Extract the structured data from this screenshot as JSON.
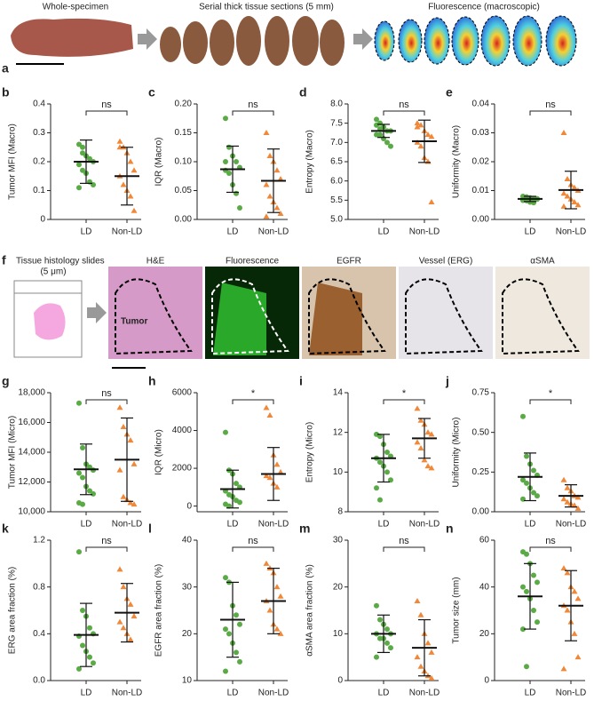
{
  "panel_a": {
    "letter": "a",
    "labels": [
      "Whole-specimen",
      "Serial thick tissue sections (5 mm)",
      "Fluorescence (macroscopic)"
    ]
  },
  "panel_f": {
    "letter": "f",
    "slide_label": "Tissue histology slides",
    "slide_sub": "(5 μm)",
    "labels": [
      "H&E",
      "Fluorescence",
      "EGFR",
      "Vessel (ERG)",
      "αSMA"
    ],
    "tumor": "Tumor"
  },
  "chart_data": [
    {
      "type": "dot",
      "panel": "b",
      "ylabel": "Tumor MFI (Macro)",
      "categories": [
        "LD",
        "Non-LD"
      ],
      "significance": "ns",
      "ylim": [
        0,
        0.4
      ],
      "yticks": [
        0,
        0.1,
        0.2,
        0.3,
        0.4
      ],
      "groups": [
        {
          "color": "#5aaa46",
          "marker": "circle",
          "values": [
            0.26,
            0.23,
            0.22,
            0.21,
            0.2,
            0.19,
            0.17,
            0.16,
            0.13,
            0.12,
            0.11,
            0.25
          ],
          "mean": 0.2,
          "sd": 0.075
        },
        {
          "color": "#f0883a",
          "marker": "triangle",
          "values": [
            0.27,
            0.25,
            0.23,
            0.2,
            0.17,
            0.15,
            0.12,
            0.1,
            0.08,
            0.03,
            0.25
          ],
          "mean": 0.15,
          "sd": 0.1
        }
      ]
    },
    {
      "type": "dot",
      "panel": "c",
      "ylabel": "IQR (Macro)",
      "categories": [
        "LD",
        "Non-LD"
      ],
      "significance": "ns",
      "ylim": [
        0,
        0.2
      ],
      "yticks": [
        {
          "value": 0,
          "label": "0.00"
        },
        {
          "value": 0.05,
          "label": "0.05"
        },
        {
          "value": 0.1,
          "label": "0.10"
        },
        {
          "value": 0.15,
          "label": "0.15"
        },
        {
          "value": 0.2,
          "label": "0.20"
        }
      ],
      "groups": [
        {
          "color": "#5aaa46",
          "marker": "circle",
          "values": [
            0.175,
            0.125,
            0.11,
            0.1,
            0.09,
            0.085,
            0.08,
            0.06,
            0.045,
            0.02,
            0.1
          ],
          "mean": 0.087,
          "sd": 0.04
        },
        {
          "color": "#f0883a",
          "marker": "triangle",
          "values": [
            0.15,
            0.11,
            0.1,
            0.085,
            0.07,
            0.06,
            0.04,
            0.03,
            0.02,
            0.01,
            0.005
          ],
          "mean": 0.067,
          "sd": 0.055
        }
      ]
    },
    {
      "type": "dot",
      "panel": "d",
      "ylabel": "Entropy (Macro)",
      "categories": [
        "LD",
        "Non-LD"
      ],
      "significance": "ns",
      "ylim": [
        5,
        8
      ],
      "yticks": [
        {
          "value": 5,
          "label": "5.0"
        },
        {
          "value": 5.5,
          "label": "5.5"
        },
        {
          "value": 6,
          "label": "6.0"
        },
        {
          "value": 6.5,
          "label": "6.5"
        },
        {
          "value": 7,
          "label": "7.0"
        },
        {
          "value": 7.5,
          "label": "7.5"
        },
        {
          "value": 8,
          "label": "8.0"
        }
      ],
      "groups": [
        {
          "color": "#5aaa46",
          "marker": "circle",
          "values": [
            7.6,
            7.5,
            7.4,
            7.3,
            7.3,
            7.2,
            7.2,
            7.1,
            7.0,
            6.9,
            7.45,
            7.35
          ],
          "mean": 7.3,
          "sd": 0.17
        },
        {
          "color": "#f0883a",
          "marker": "triangle",
          "values": [
            7.5,
            7.45,
            7.3,
            7.2,
            7.15,
            7.0,
            6.9,
            6.6,
            6.5,
            5.45,
            7.4
          ],
          "mean": 7.03,
          "sd": 0.55
        }
      ]
    },
    {
      "type": "dot",
      "panel": "e",
      "ylabel": "Uniformity (Macro)",
      "categories": [
        "LD",
        "Non-LD"
      ],
      "significance": "ns",
      "ylim": [
        0,
        0.04
      ],
      "yticks": [
        {
          "value": 0,
          "label": "0.00"
        },
        {
          "value": 0.01,
          "label": "0.01"
        },
        {
          "value": 0.02,
          "label": "0.02"
        },
        {
          "value": 0.03,
          "label": "0.03"
        },
        {
          "value": 0.04,
          "label": "0.04"
        }
      ],
      "groups": [
        {
          "color": "#5aaa46",
          "marker": "circle",
          "values": [
            0.008,
            0.0078,
            0.0075,
            0.0072,
            0.007,
            0.0068,
            0.0065,
            0.006,
            0.0058,
            0.0072,
            0.0066
          ],
          "mean": 0.0071,
          "sd": 0.0009
        },
        {
          "color": "#f0883a",
          "marker": "triangle",
          "values": [
            0.03,
            0.014,
            0.012,
            0.011,
            0.01,
            0.009,
            0.008,
            0.007,
            0.006,
            0.005,
            0.0045
          ],
          "mean": 0.0102,
          "sd": 0.0065
        }
      ]
    },
    {
      "type": "dot",
      "panel": "g",
      "ylabel": "Tumor MFI (Micro)",
      "categories": [
        "LD",
        "Non-LD"
      ],
      "significance": "ns",
      "ylim": [
        10000,
        18000
      ],
      "yticks": [
        {
          "value": 10000,
          "label": "10,000"
        },
        {
          "value": 12000,
          "label": "12,000"
        },
        {
          "value": 14000,
          "label": "14,000"
        },
        {
          "value": 16000,
          "label": "16,000"
        },
        {
          "value": 18000,
          "label": "18,000"
        }
      ],
      "groups": [
        {
          "color": "#5aaa46",
          "marker": "circle",
          "values": [
            17300,
            14300,
            13200,
            13000,
            12800,
            12600,
            12300,
            11700,
            11400,
            11200,
            10600,
            10500
          ],
          "mean": 12850,
          "sd": 1700
        },
        {
          "color": "#f0883a",
          "marker": "triangle",
          "values": [
            17000,
            15700,
            15200,
            14800,
            13200,
            12800,
            11000,
            10800,
            10600,
            10500
          ],
          "mean": 13500,
          "sd": 2800
        }
      ]
    },
    {
      "type": "dot",
      "panel": "h",
      "ylabel": "IQR (Micro)",
      "categories": [
        "LD",
        "Non-LD"
      ],
      "significance": "*",
      "ylim": [
        -300,
        6000
      ],
      "yticks": [
        0,
        2000,
        4000,
        6000
      ],
      "groups": [
        {
          "color": "#5aaa46",
          "marker": "circle",
          "values": [
            3900,
            1900,
            1700,
            1200,
            1000,
            800,
            600,
            500,
            300,
            200,
            100,
            0
          ],
          "mean": 900,
          "sd": 1000
        },
        {
          "color": "#f0883a",
          "marker": "triangle",
          "values": [
            5200,
            4800,
            2700,
            2200,
            1800,
            1600,
            1500,
            1200,
            1000
          ],
          "mean": 1700,
          "sd": 1400
        }
      ]
    },
    {
      "type": "dot",
      "panel": "i",
      "ylabel": "Entropy (Micro)",
      "categories": [
        "LD",
        "Non-LD"
      ],
      "significance": "*",
      "ylim": [
        8,
        14
      ],
      "yticks": [
        8,
        10,
        12,
        14
      ],
      "groups": [
        {
          "color": "#5aaa46",
          "marker": "circle",
          "values": [
            11.9,
            11.8,
            11.4,
            11,
            10.8,
            10.7,
            10.5,
            10.3,
            10,
            9.6,
            9.2,
            8.6
          ],
          "mean": 10.7,
          "sd": 1.2
        },
        {
          "color": "#f0883a",
          "marker": "triangle",
          "values": [
            13.2,
            12.6,
            12.4,
            12,
            11.9,
            11.5,
            11.2,
            10.6,
            10.3,
            10.2
          ],
          "mean": 11.7,
          "sd": 1.0
        }
      ]
    },
    {
      "type": "dot",
      "panel": "j",
      "ylabel": "Uniformity (Micro)",
      "categories": [
        "LD",
        "Non-LD"
      ],
      "significance": "*",
      "ylim": [
        0,
        0.75
      ],
      "yticks": [
        {
          "value": 0,
          "label": "0.00"
        },
        {
          "value": 0.25,
          "label": "0.25"
        },
        {
          "value": 0.5,
          "label": "0.50"
        },
        {
          "value": 0.75,
          "label": "0.75"
        }
      ],
      "groups": [
        {
          "color": "#5aaa46",
          "marker": "circle",
          "values": [
            0.6,
            0.35,
            0.3,
            0.26,
            0.23,
            0.2,
            0.18,
            0.15,
            0.12,
            0.1,
            0.08
          ],
          "mean": 0.22,
          "sd": 0.15
        },
        {
          "color": "#f0883a",
          "marker": "triangle",
          "values": [
            0.2,
            0.15,
            0.13,
            0.1,
            0.09,
            0.08,
            0.06,
            0.05,
            0.04,
            0.02
          ],
          "mean": 0.1,
          "sd": 0.07
        }
      ]
    },
    {
      "type": "dot",
      "panel": "k",
      "ylabel": "ERG area fraction (%)",
      "categories": [
        "LD",
        "Non-LD"
      ],
      "significance": "ns",
      "ylim": [
        0,
        1.2
      ],
      "yticks": [
        {
          "value": 0,
          "label": "0.0"
        },
        0.4,
        0.8,
        1.2
      ],
      "groups": [
        {
          "color": "#5aaa46",
          "marker": "circle",
          "values": [
            1.1,
            0.6,
            0.55,
            0.45,
            0.4,
            0.38,
            0.3,
            0.25,
            0.2,
            0.15,
            0.1
          ],
          "mean": 0.39,
          "sd": 0.27
        },
        {
          "color": "#f0883a",
          "marker": "triangle",
          "values": [
            0.95,
            0.8,
            0.7,
            0.65,
            0.55,
            0.5,
            0.45,
            0.4,
            0.35
          ],
          "mean": 0.58,
          "sd": 0.25
        }
      ]
    },
    {
      "type": "dot",
      "panel": "l",
      "ylabel": "EGFR area fraction (%)",
      "categories": [
        "LD",
        "Non-LD"
      ],
      "significance": "ns",
      "ylim": [
        10,
        40
      ],
      "yticks": [
        10,
        20,
        30,
        40
      ],
      "groups": [
        {
          "color": "#5aaa46",
          "marker": "circle",
          "values": [
            32,
            31,
            26,
            24,
            22,
            21,
            20,
            18,
            16,
            14,
            12
          ],
          "mean": 23,
          "sd": 8
        },
        {
          "color": "#f0883a",
          "marker": "triangle",
          "values": [
            35,
            34,
            33,
            30,
            28,
            27,
            25,
            22,
            21,
            20
          ],
          "mean": 27,
          "sd": 7
        }
      ]
    },
    {
      "type": "dot",
      "panel": "m",
      "ylabel": "αSMA area fraction (%)",
      "categories": [
        "LD",
        "Non-LD"
      ],
      "significance": "ns",
      "ylim": [
        0,
        30
      ],
      "yticks": [
        0,
        10,
        20,
        30
      ],
      "groups": [
        {
          "color": "#5aaa46",
          "marker": "circle",
          "values": [
            16,
            13,
            12,
            11,
            10,
            10,
            9,
            9,
            8,
            7,
            5
          ],
          "mean": 10,
          "sd": 4
        },
        {
          "color": "#f0883a",
          "marker": "triangle",
          "values": [
            17,
            14,
            10,
            8,
            6,
            5,
            3,
            2,
            1,
            0.5
          ],
          "mean": 7,
          "sd": 6
        }
      ]
    },
    {
      "type": "dot",
      "panel": "n",
      "ylabel": "Tumor size (mm)",
      "categories": [
        "LD",
        "Non-LD"
      ],
      "significance": "ns",
      "ylim": [
        0,
        60
      ],
      "yticks": [
        0,
        20,
        40,
        60
      ],
      "groups": [
        {
          "color": "#5aaa46",
          "marker": "circle",
          "values": [
            55,
            54,
            50,
            45,
            42,
            40,
            38,
            35,
            30,
            25,
            22,
            6
          ],
          "mean": 36,
          "sd": 14
        },
        {
          "color": "#f0883a",
          "marker": "triangle",
          "values": [
            48,
            46,
            40,
            38,
            35,
            32,
            30,
            25,
            20,
            10,
            5
          ],
          "mean": 32,
          "sd": 15
        }
      ]
    }
  ]
}
